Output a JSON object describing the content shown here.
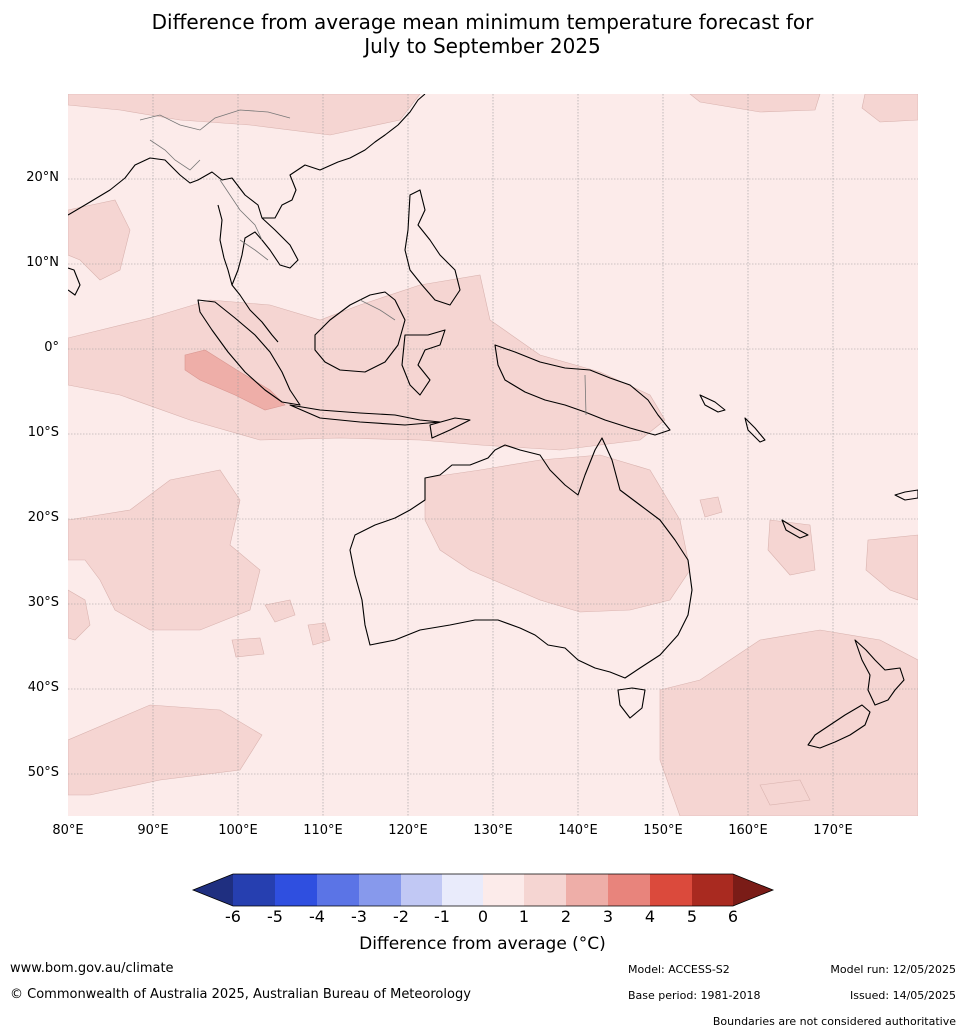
{
  "title": {
    "line1": "Difference from average mean minimum temperature forecast for",
    "line2": "July to September 2025"
  },
  "map": {
    "lat_labels": [
      "20°N",
      "10°N",
      "0°",
      "10°S",
      "20°S",
      "30°S",
      "40°S",
      "50°S"
    ],
    "lon_labels": [
      "80°E",
      "90°E",
      "100°E",
      "110°E",
      "120°E",
      "130°E",
      "140°E",
      "150°E",
      "160°E",
      "170°E"
    ]
  },
  "colorbar": {
    "ticks": [
      "-6",
      "-5",
      "-4",
      "-3",
      "-2",
      "-1",
      "0",
      "1",
      "2",
      "3",
      "4",
      "5",
      "6"
    ],
    "colors": [
      "#1f2f80",
      "#263fb0",
      "#2f4fe0",
      "#5b74e6",
      "#8799ec",
      "#c1c8f4",
      "#e9ebfb",
      "#fcebea",
      "#f5d5d2",
      "#eeaea8",
      "#e8847c",
      "#db4a3c",
      "#a92a20",
      "#7a1c17"
    ],
    "label": "Difference from average (°C)"
  },
  "footer": {
    "website": "www.bom.gov.au/climate",
    "copyright": "© Commonwealth of Australia 2025, Australian Bureau of Meteorology",
    "model": "Model: ACCESS-S2",
    "model_run": "Model run: 12/05/2025",
    "base_period": "Base period: 1981-2018",
    "issued": "Issued: 14/05/2025",
    "disclaimer": "Boundaries are not considered authoritative"
  }
}
